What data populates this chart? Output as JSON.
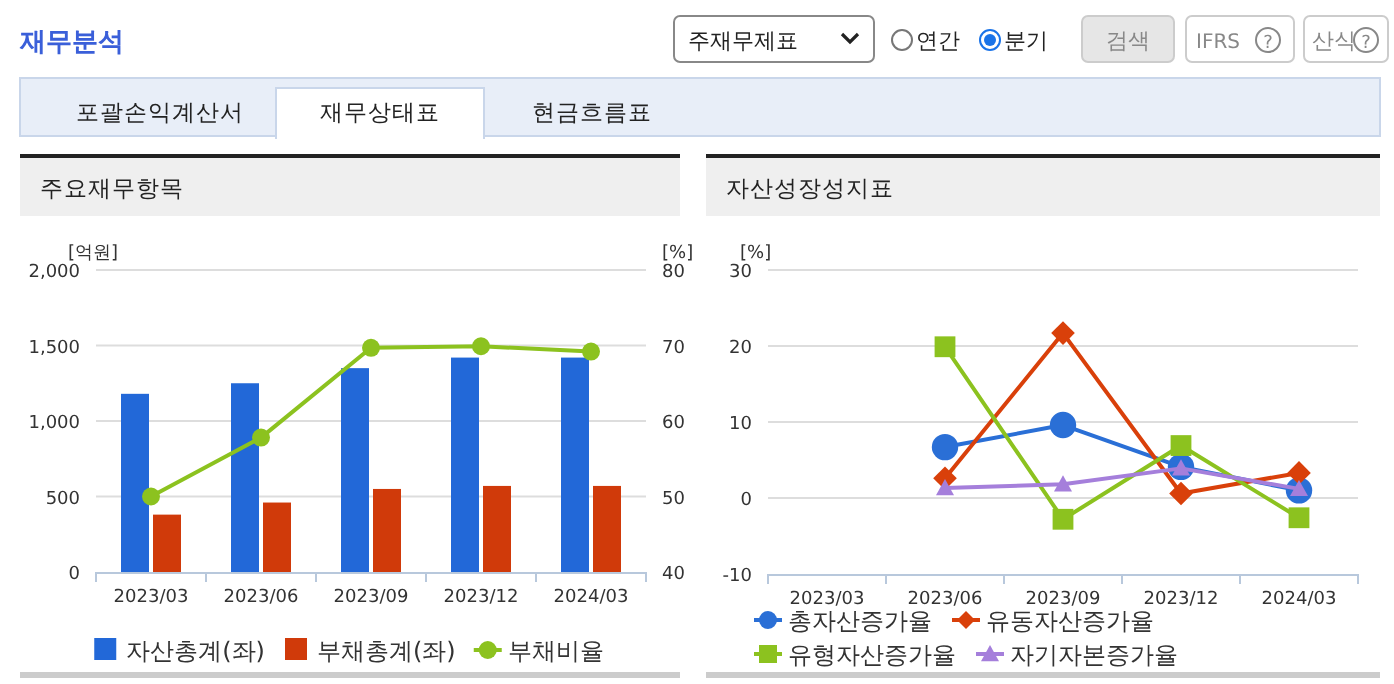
{
  "chart_data": [
    {
      "type": "other",
      "annotations": [
        "재무분석",
        "주재무제표",
        "연간",
        "분기",
        "검색",
        "IFRS",
        "?",
        "산식",
        "?",
        "포괄손익계산서",
        "재무상태표",
        "현금흐름표"
      ]
    },
    {
      "type": "bar",
      "title": "주요재무항목",
      "ylabel": "[억원]",
      "y2label": "[%]",
      "categories": [
        "2023/03",
        "2023/06",
        "2023/09",
        "2023/12",
        "2024/03"
      ],
      "ylim": [
        0,
        2000
      ],
      "yticks": [
        0,
        500,
        {
          "value": 1000,
          "label": "1,000"
        },
        {
          "value": 1500,
          "label": "1,500"
        },
        {
          "value": 2000,
          "label": "2,000"
        }
      ],
      "y2lim": [
        40,
        80
      ],
      "y2ticks": [
        40,
        50,
        60,
        70,
        80
      ],
      "grid": "y",
      "legend": "bottom",
      "series": [
        {
          "name": "자산총계(좌)",
          "color": "#2268d8",
          "values": [
            1180,
            1250,
            1350,
            1420,
            1420
          ]
        },
        {
          "name": "부채총계(좌)",
          "color": "#d03a0a",
          "values": [
            380,
            460,
            550,
            570,
            570
          ]
        },
        {
          "name": "부채비율",
          "type": "line",
          "axis": "y2",
          "marker": "circle",
          "color": "#8cc21f",
          "values": [
            50.0,
            57.8,
            69.7,
            69.9,
            69.2
          ]
        }
      ]
    },
    {
      "type": "line",
      "title": "자산성장성지표",
      "ylabel": "[%]",
      "categories": [
        "2023/03",
        "2023/06",
        "2023/09",
        "2023/12",
        "2024/03"
      ],
      "ylim": [
        -10,
        30
      ],
      "yticks": [
        -10,
        0,
        10,
        20,
        30
      ],
      "grid": "y",
      "legend": "bottom",
      "series": [
        {
          "name": "총자산증가율",
          "color": "#2a6fd6",
          "marker": "circle",
          "values": [
            null,
            6.7,
            9.6,
            4.1,
            1.0
          ]
        },
        {
          "name": "유동자산증가율",
          "color": "#d9400a",
          "marker": "diamond",
          "values": [
            null,
            2.6,
            21.7,
            0.6,
            3.3
          ]
        },
        {
          "name": "유형자산증가율",
          "color": "#8cc21f",
          "marker": "square",
          "values": [
            null,
            19.9,
            -2.8,
            6.9,
            -2.6
          ]
        },
        {
          "name": "자기자본증가율",
          "color": "#a57fdb",
          "marker": "triangle",
          "values": [
            null,
            1.3,
            1.8,
            3.9,
            1.2
          ]
        }
      ]
    }
  ]
}
